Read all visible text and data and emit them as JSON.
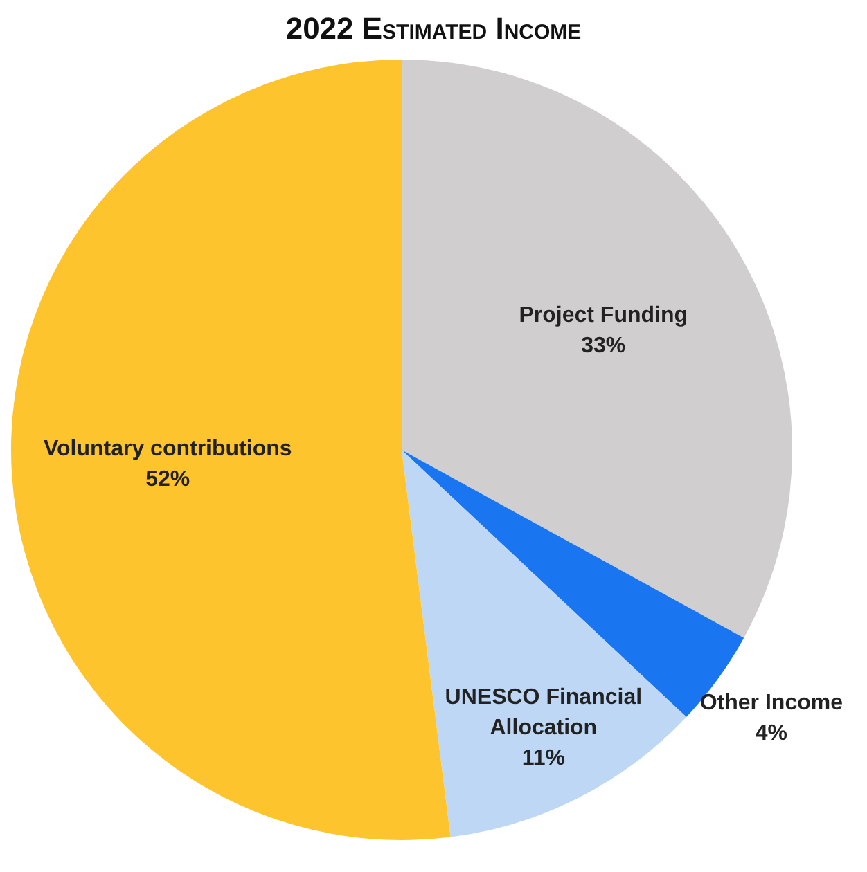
{
  "chart_data": {
    "type": "pie",
    "title": "2022 Estimated Income",
    "categories": [
      "Project Funding",
      "Other Income",
      "UNESCO Financial Allocation",
      "Voluntary contributions"
    ],
    "values": [
      33,
      4,
      11,
      52
    ],
    "colors": [
      "#d0cece",
      "#1a75f0",
      "#bdd7f5",
      "#fec42e"
    ],
    "value_labels": [
      "33%",
      "4%",
      "11%",
      "52%"
    ],
    "legend": false
  }
}
